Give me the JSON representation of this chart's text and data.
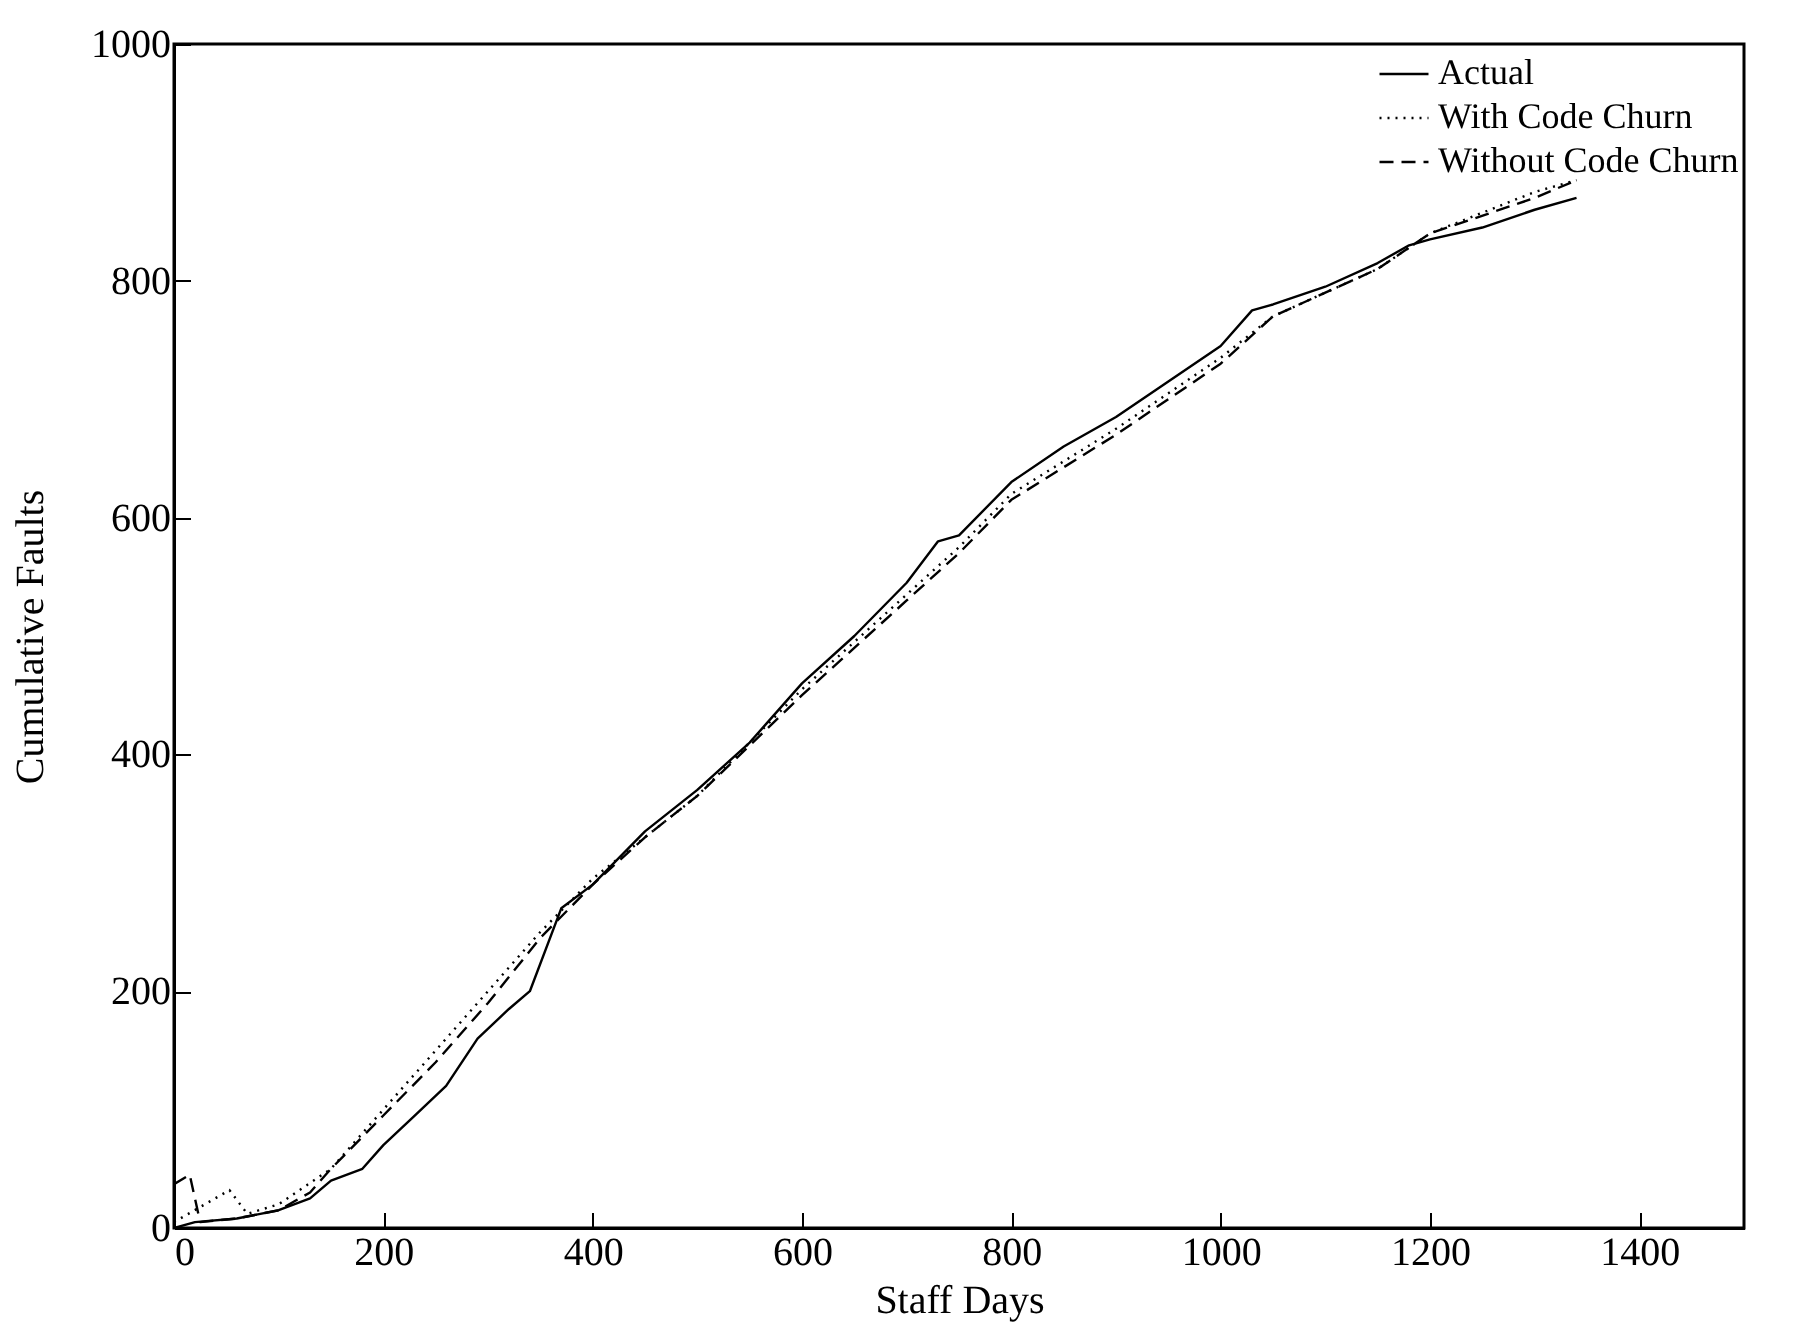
{
  "chart_data": {
    "type": "line",
    "xlabel": "Staff Days",
    "ylabel": "Cumulative Faults",
    "xlim": [
      0,
      1500
    ],
    "ylim": [
      0,
      1000
    ],
    "xticks": [
      0,
      200,
      400,
      600,
      800,
      1000,
      1200,
      1400
    ],
    "yticks": [
      0,
      200,
      400,
      600,
      800,
      1000
    ],
    "grid": false,
    "legend": "top right",
    "marker": "none",
    "series": [
      {
        "name": "Actual",
        "color": "#000000",
        "line_style": "solid",
        "x": [
          0,
          20,
          60,
          100,
          130,
          150,
          180,
          200,
          230,
          260,
          290,
          320,
          340,
          370,
          400,
          450,
          500,
          550,
          600,
          650,
          700,
          730,
          750,
          800,
          850,
          900,
          950,
          1000,
          1030,
          1050,
          1100,
          1150,
          1180,
          1200,
          1250,
          1300,
          1340
        ],
        "values": [
          0,
          5,
          8,
          15,
          25,
          40,
          50,
          70,
          95,
          120,
          160,
          185,
          200,
          270,
          290,
          335,
          370,
          410,
          460,
          500,
          545,
          580,
          585,
          630,
          660,
          685,
          715,
          745,
          775,
          780,
          795,
          815,
          830,
          835,
          845,
          860,
          870
        ]
      },
      {
        "name": "With Code Churn",
        "color": "#000000",
        "line_style": "dotted",
        "x": [
          0,
          53,
          70,
          100,
          150,
          200,
          250,
          300,
          350,
          400,
          450,
          500,
          600,
          700,
          750,
          800,
          900,
          1000,
          1050,
          1100,
          1150,
          1200,
          1300,
          1340
        ],
        "values": [
          5,
          32,
          12,
          20,
          50,
          100,
          150,
          200,
          250,
          295,
          330,
          365,
          455,
          535,
          575,
          620,
          675,
          735,
          770,
          790,
          810,
          840,
          875,
          885
        ]
      },
      {
        "name": "Without Code Churn",
        "color": "#000000",
        "line_style": "dashed",
        "x": [
          0,
          15,
          25,
          60,
          100,
          130,
          150,
          200,
          250,
          300,
          350,
          400,
          450,
          500,
          600,
          700,
          750,
          800,
          900,
          1000,
          1050,
          1100,
          1150,
          1200,
          1300,
          1340
        ],
        "values": [
          37,
          45,
          5,
          8,
          15,
          30,
          50,
          95,
          140,
          190,
          245,
          290,
          330,
          365,
          450,
          530,
          570,
          615,
          670,
          730,
          770,
          790,
          810,
          840,
          870,
          885
        ]
      }
    ]
  }
}
